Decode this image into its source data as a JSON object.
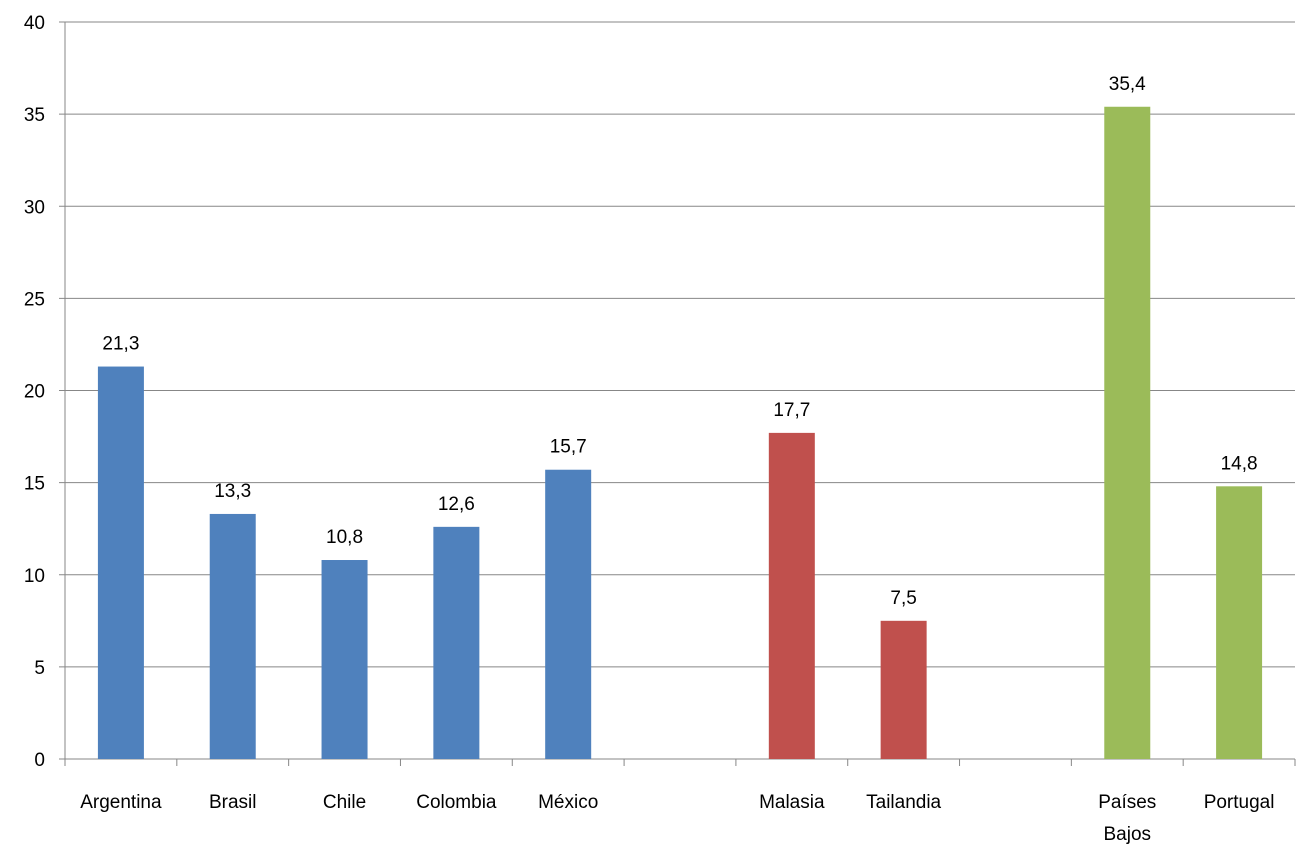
{
  "chart_data": {
    "type": "bar",
    "title": "",
    "xlabel": "",
    "ylabel": "",
    "ylim": [
      0,
      40
    ],
    "yticks": [
      0,
      5,
      10,
      15,
      20,
      25,
      30,
      35,
      40
    ],
    "grid": true,
    "legend": "none",
    "slots": 11,
    "categories": [
      {
        "label": [
          "Argentina"
        ],
        "slot": 0,
        "value": 21.3,
        "value_label": "21,3",
        "color": "#4F81BD"
      },
      {
        "label": [
          "Brasil"
        ],
        "slot": 1,
        "value": 13.3,
        "value_label": "13,3",
        "color": "#4F81BD"
      },
      {
        "label": [
          "Chile"
        ],
        "slot": 2,
        "value": 10.8,
        "value_label": "10,8",
        "color": "#4F81BD"
      },
      {
        "label": [
          "Colombia"
        ],
        "slot": 3,
        "value": 12.6,
        "value_label": "12,6",
        "color": "#4F81BD"
      },
      {
        "label": [
          "México"
        ],
        "slot": 4,
        "value": 15.7,
        "value_label": "15,7",
        "color": "#4F81BD"
      },
      {
        "label": [
          "Malasia"
        ],
        "slot": 6,
        "value": 17.7,
        "value_label": "17,7",
        "color": "#C0504D"
      },
      {
        "label": [
          "Tailandia"
        ],
        "slot": 7,
        "value": 7.5,
        "value_label": "7,5",
        "color": "#C0504D"
      },
      {
        "label": [
          "Países",
          "Bajos"
        ],
        "slot": 9,
        "value": 35.4,
        "value_label": "35,4",
        "color": "#9BBB59"
      },
      {
        "label": [
          "Portugal"
        ],
        "slot": 10,
        "value": 14.8,
        "value_label": "14,8",
        "color": "#9BBB59"
      }
    ]
  }
}
